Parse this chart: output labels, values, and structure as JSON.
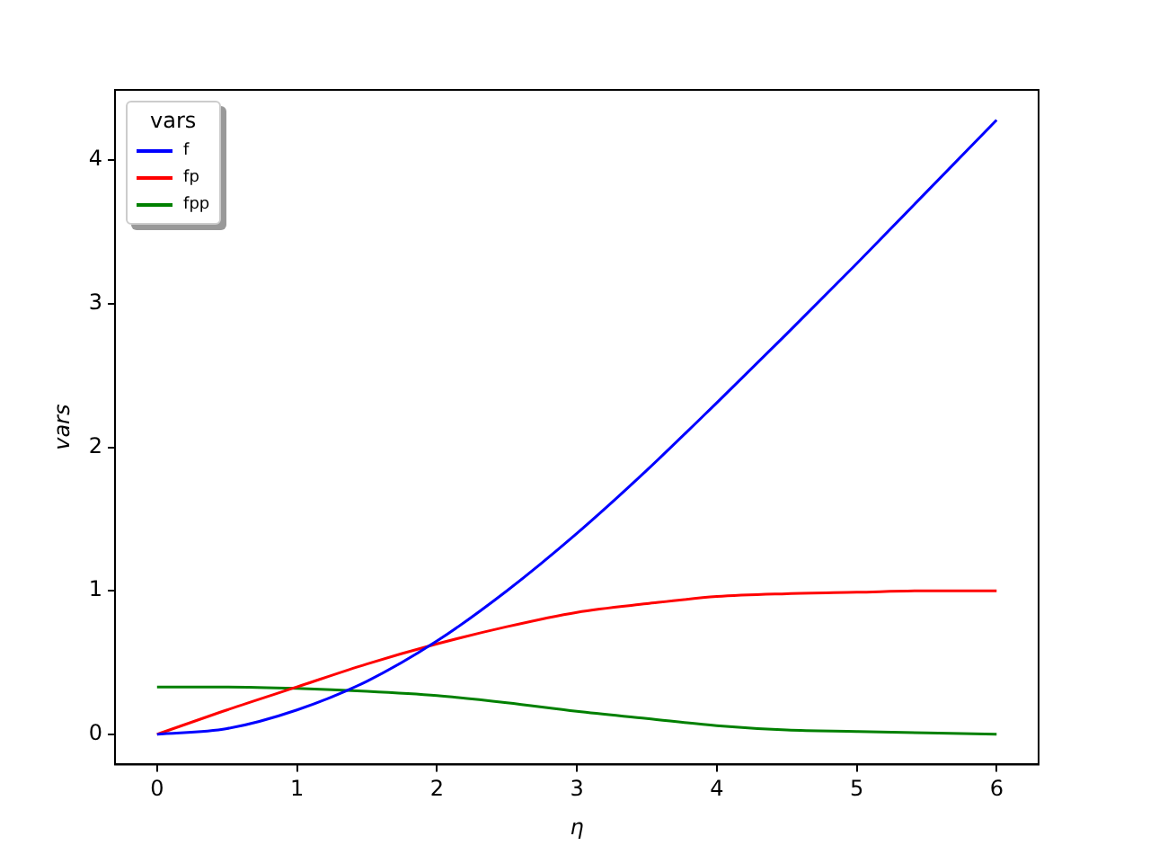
{
  "chart_data": {
    "type": "line",
    "xlabel": "η",
    "ylabel": "vars",
    "legend_title": "vars",
    "legend": "top left",
    "grid": false,
    "marker": "none",
    "line_style": "solid",
    "x": [
      0,
      0.5,
      1,
      1.5,
      2,
      2.5,
      3,
      3.5,
      4,
      4.5,
      5,
      5.5,
      6
    ],
    "xlim": [
      -0.3,
      6.3
    ],
    "xticks": [
      0,
      1,
      2,
      3,
      4,
      5,
      6
    ],
    "ylim": [
      -0.21,
      4.49
    ],
    "yticks": [
      0,
      1,
      2,
      3,
      4
    ],
    "series": [
      {
        "name": "f",
        "color": "#0000ff",
        "values": [
          0,
          0.04,
          0.17,
          0.37,
          0.65,
          1.0,
          1.4,
          1.84,
          2.31,
          2.79,
          3.28,
          3.78,
          4.28
        ]
      },
      {
        "name": "fp",
        "color": "#ff0000",
        "values": [
          0,
          0.17,
          0.33,
          0.49,
          0.63,
          0.75,
          0.85,
          0.91,
          0.96,
          0.98,
          0.99,
          1.0,
          1.0
        ]
      },
      {
        "name": "fpp",
        "color": "#008000",
        "values": [
          0.33,
          0.33,
          0.32,
          0.3,
          0.27,
          0.22,
          0.16,
          0.11,
          0.06,
          0.03,
          0.02,
          0.01,
          0
        ]
      }
    ]
  }
}
